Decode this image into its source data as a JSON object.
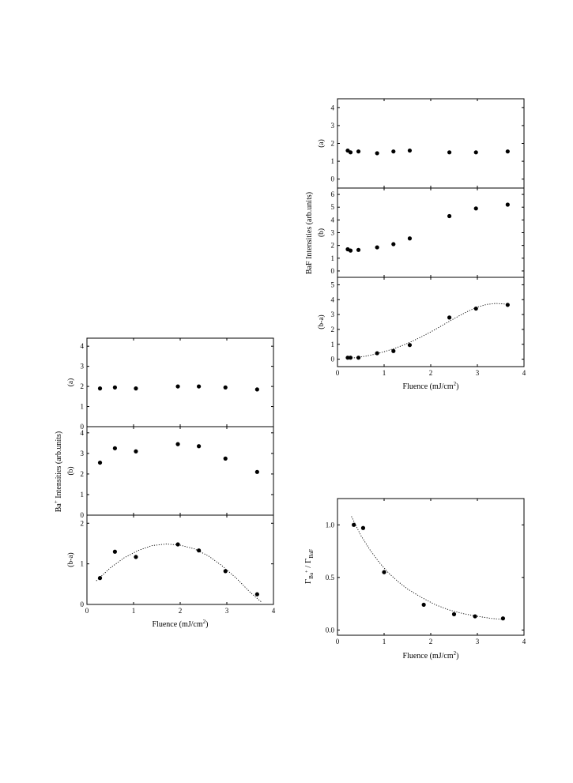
{
  "chart_data": [
    {
      "type": "scatter",
      "figure": "BaF",
      "xlabel": "Fluence (mJ/cm",
      "xlabel_sup": "2",
      "xlabel_end": ")",
      "ylabel": "BaF Intensities (arb.units)",
      "xlim": [
        0,
        4
      ],
      "xticks": [
        "0",
        "1",
        "2",
        "3",
        "4"
      ],
      "panels": [
        {
          "label": "(a)",
          "ylim": [
            -0.5,
            4.5
          ],
          "yticks": [
            0,
            1,
            2,
            3,
            4
          ],
          "x": [
            0.22,
            0.28,
            0.45,
            0.85,
            1.2,
            1.55,
            2.4,
            2.97,
            3.65
          ],
          "y": [
            1.6,
            1.5,
            1.55,
            1.45,
            1.55,
            1.6,
            1.5,
            1.5,
            1.55
          ]
        },
        {
          "label": "(b)",
          "ylim": [
            -0.5,
            6.5
          ],
          "yticks": [
            0,
            1,
            2,
            3,
            4,
            5,
            6
          ],
          "x": [
            0.22,
            0.28,
            0.45,
            0.85,
            1.2,
            1.55,
            2.4,
            2.97,
            3.65
          ],
          "y": [
            1.7,
            1.6,
            1.65,
            1.85,
            2.1,
            2.55,
            4.3,
            4.9,
            5.2
          ]
        },
        {
          "label": "(b-a)",
          "ylim": [
            -0.5,
            5.5
          ],
          "yticks": [
            0,
            1,
            2,
            3,
            4,
            5
          ],
          "x": [
            0.22,
            0.28,
            0.45,
            0.85,
            1.2,
            1.55,
            2.4,
            2.97,
            3.65
          ],
          "y": [
            0.1,
            0.1,
            0.1,
            0.4,
            0.55,
            0.95,
            2.8,
            3.4,
            3.65
          ],
          "fit": {
            "x": [
              0.2,
              0.4,
              0.6,
              0.8,
              1.0,
              1.2,
              1.4,
              1.6,
              1.8,
              2.0,
              2.2,
              2.4,
              2.6,
              2.8,
              3.0,
              3.2,
              3.4,
              3.6,
              3.7
            ],
            "y": [
              0.05,
              0.1,
              0.2,
              0.33,
              0.5,
              0.7,
              0.93,
              1.2,
              1.5,
              1.83,
              2.18,
              2.55,
              2.9,
              3.22,
              3.5,
              3.68,
              3.75,
              3.7,
              3.65
            ]
          }
        }
      ]
    },
    {
      "type": "scatter",
      "figure": "Ba+",
      "xlabel": "Fluence (mJ/cm",
      "xlabel_sup": "2",
      "xlabel_end": ")",
      "ylabel": "Ba",
      "ylabel_sup": "+",
      "ylabel_rest": " Intensities (arb.units)",
      "xlim": [
        0,
        4
      ],
      "xticks": [
        "0",
        "1",
        "2",
        "3",
        "4"
      ],
      "panels": [
        {
          "label": "(a)",
          "ylim": [
            0,
            4.4
          ],
          "yticks": [
            0,
            1,
            2,
            3,
            4
          ],
          "x": [
            0.28,
            0.6,
            1.05,
            1.95,
            2.4,
            2.97,
            3.65
          ],
          "y": [
            1.9,
            1.95,
            1.9,
            2.0,
            2.0,
            1.95,
            1.85
          ]
        },
        {
          "label": "(b)",
          "ylim": [
            0,
            4.3
          ],
          "yticks": [
            0,
            1,
            2,
            3,
            4
          ],
          "x": [
            0.28,
            0.6,
            1.05,
            1.95,
            2.4,
            2.97,
            3.65
          ],
          "y": [
            2.55,
            3.25,
            3.1,
            3.45,
            3.35,
            2.75,
            2.1
          ]
        },
        {
          "label": "(b-a)",
          "ylim": [
            0,
            2.2
          ],
          "yticks": [
            0,
            1,
            2
          ],
          "x": [
            0.28,
            0.6,
            1.05,
            1.95,
            2.4,
            2.97,
            3.65
          ],
          "y": [
            0.65,
            1.3,
            1.17,
            1.48,
            1.33,
            0.82,
            0.25
          ],
          "fit": {
            "x": [
              0.2,
              0.5,
              0.8,
              1.1,
              1.4,
              1.7,
              2.0,
              2.3,
              2.6,
              2.9,
              3.2,
              3.5,
              3.75
            ],
            "y": [
              0.58,
              0.9,
              1.15,
              1.33,
              1.45,
              1.49,
              1.46,
              1.37,
              1.2,
              0.95,
              0.65,
              0.3,
              0.05
            ]
          }
        }
      ]
    },
    {
      "type": "scatter",
      "figure": "ratio",
      "xlabel": "Fluence (mJ/cm",
      "xlabel_sup": "2",
      "xlabel_end": ")",
      "ylabel_main": "Γ",
      "ylabel_sub1": "Ba",
      "ylabel_sup1": "+",
      "ylabel_slash": " / Γ",
      "ylabel_sub2": "BaF",
      "xlim": [
        0,
        4
      ],
      "ylim": [
        -0.05,
        1.25
      ],
      "xticks": [
        "0",
        "1",
        "2",
        "3",
        "4"
      ],
      "yticks": [
        "0.0",
        "0.5",
        "1.0"
      ],
      "x": [
        0.35,
        0.55,
        1.0,
        1.85,
        2.5,
        2.95,
        3.55
      ],
      "y": [
        1.0,
        0.97,
        0.55,
        0.24,
        0.15,
        0.13,
        0.11
      ],
      "fit": {
        "x": [
          0.3,
          0.5,
          0.7,
          0.9,
          1.1,
          1.3,
          1.5,
          1.8,
          2.1,
          2.4,
          2.7,
          3.0,
          3.3,
          3.55
        ],
        "y": [
          1.08,
          0.9,
          0.76,
          0.64,
          0.54,
          0.46,
          0.39,
          0.31,
          0.24,
          0.19,
          0.155,
          0.13,
          0.11,
          0.1
        ]
      }
    }
  ]
}
